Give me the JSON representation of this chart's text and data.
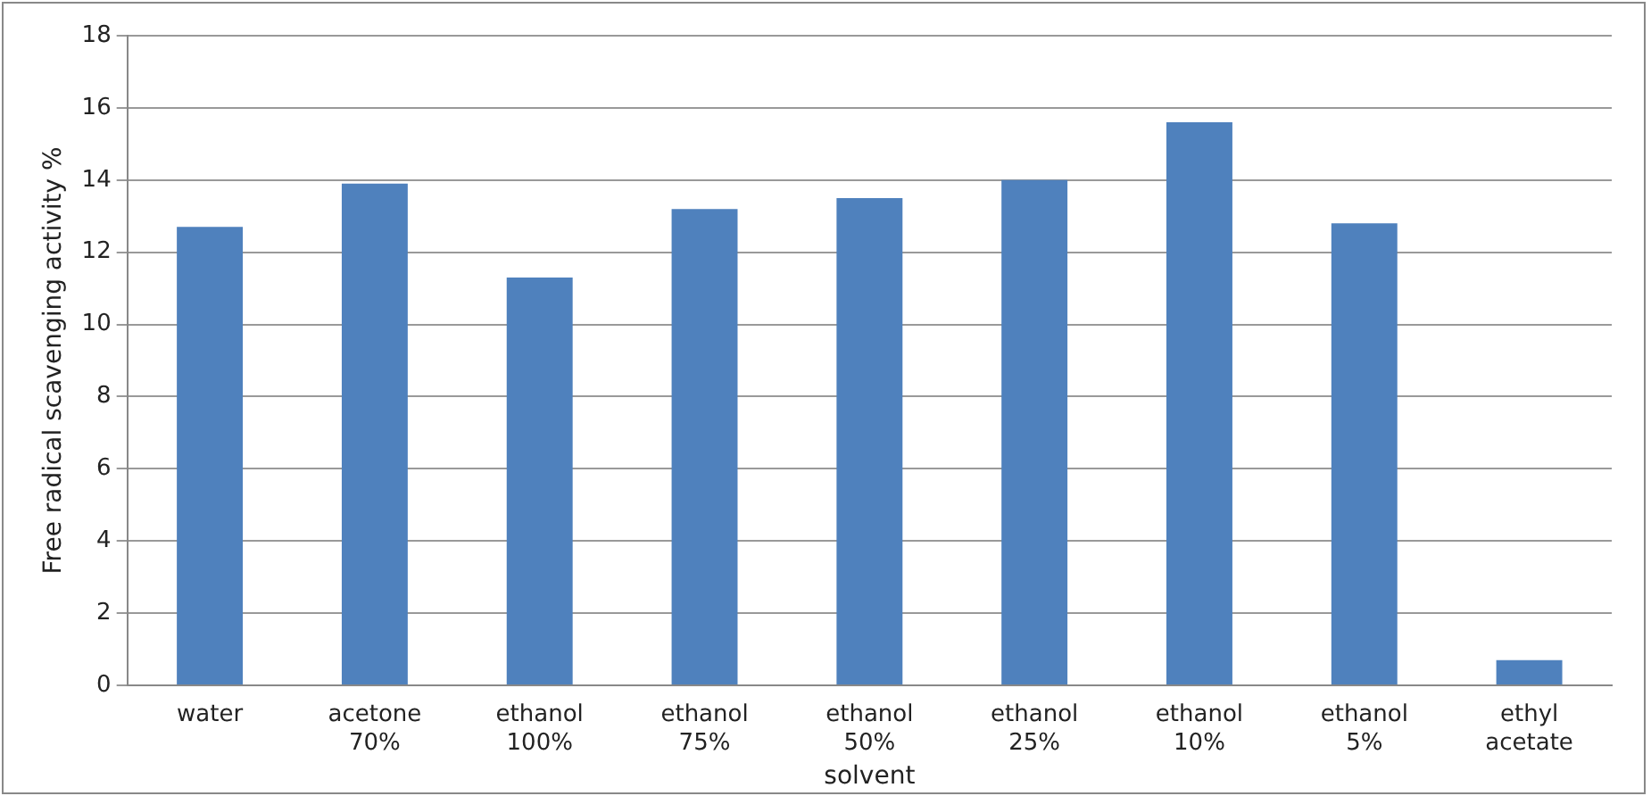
{
  "chart_data": {
    "type": "bar",
    "xlabel": "solvent",
    "ylabel": "Free radical scavenging activity %",
    "categories": [
      "water",
      "acetone 70%",
      "ethanol 100%",
      "ethanol 75%",
      "ethanol 50%",
      "ethanol 25%",
      "ethanol 10%",
      "ethanol 5%",
      "ethyl acetate"
    ],
    "values": [
      12.7,
      13.9,
      11.3,
      13.2,
      13.5,
      14.0,
      15.6,
      12.8,
      0.7
    ],
    "color": "#4f81bd",
    "ylim": [
      0,
      18
    ],
    "yticks": [
      0,
      2,
      4,
      6,
      8,
      10,
      12,
      14,
      16,
      18
    ],
    "grid": "y",
    "legend": false
  }
}
